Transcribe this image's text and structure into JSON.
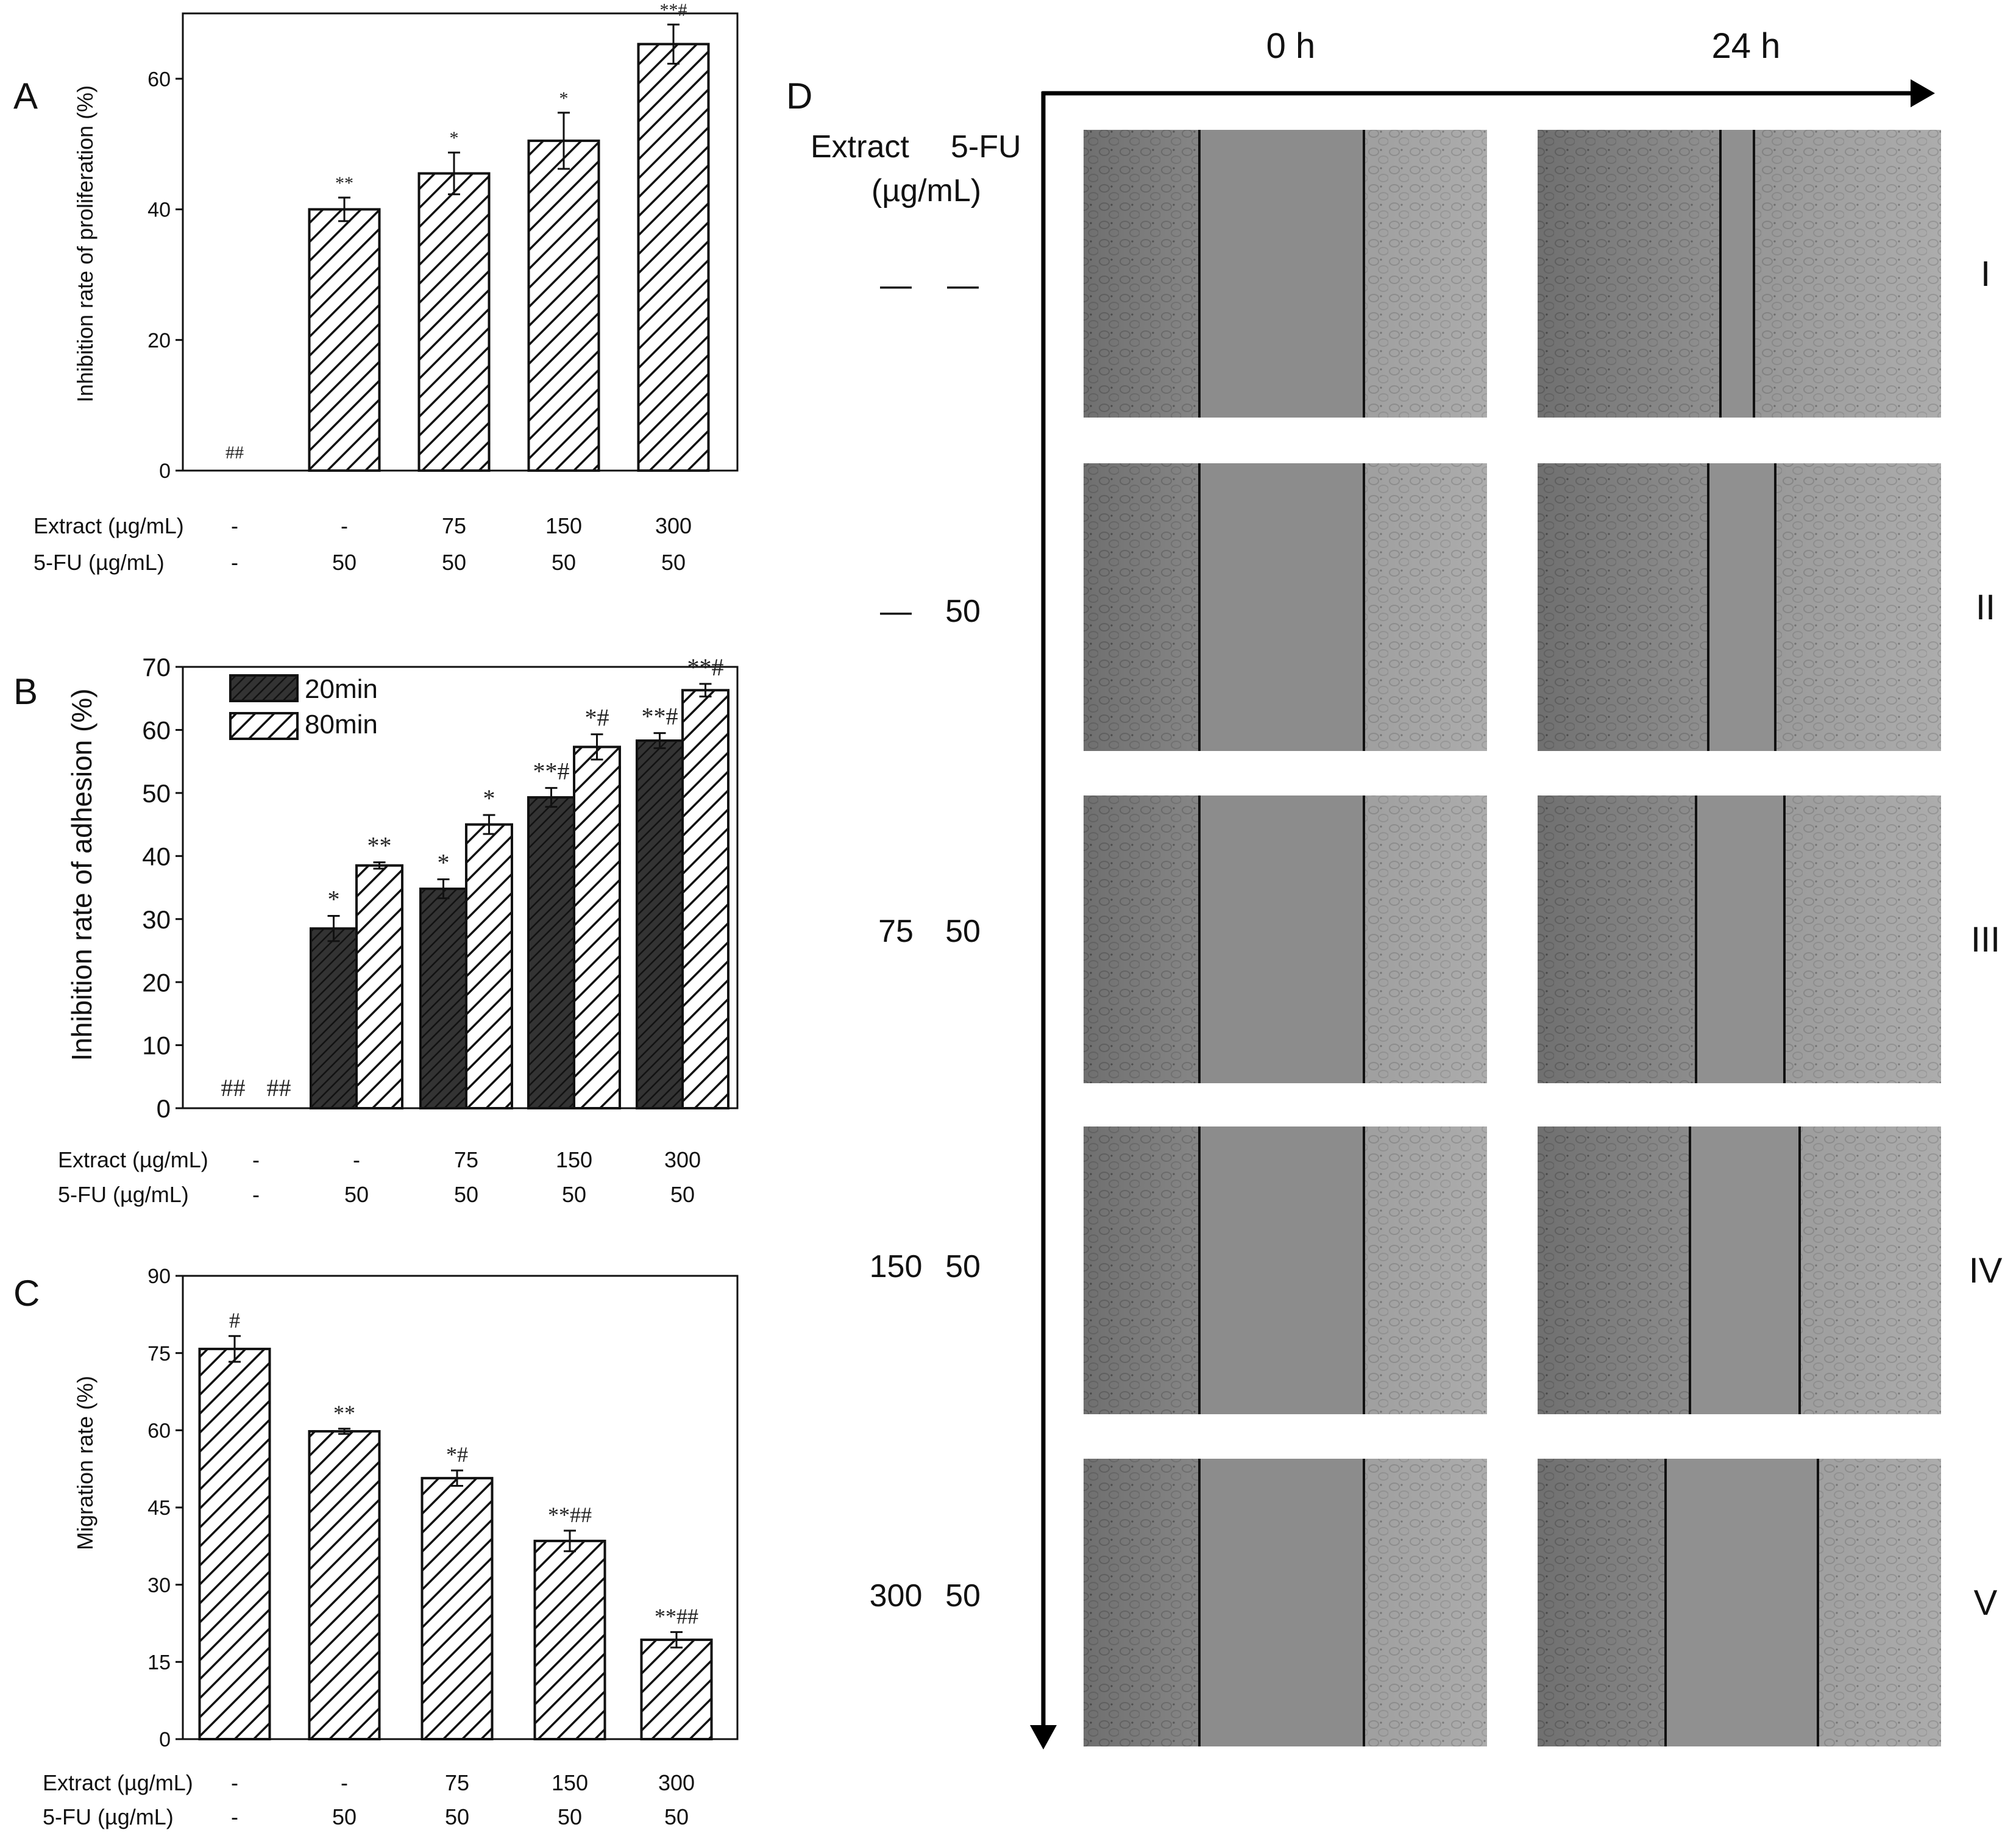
{
  "figure": {
    "panel_labels": [
      "A",
      "B",
      "C",
      "D"
    ]
  },
  "chart_data": [
    {
      "id": "A",
      "type": "bar",
      "ylabel": "Inhibition rate of proliferation (%)",
      "ylim": [
        0,
        70
      ],
      "yticks": [
        0,
        20,
        40,
        60
      ],
      "row_labels": [
        "Extract (µg/mL)",
        "5-FU (µg/mL)"
      ],
      "conditions": [
        {
          "extract": "-",
          "fu": "-"
        },
        {
          "extract": "-",
          "fu": "50"
        },
        {
          "extract": "75",
          "fu": "50"
        },
        {
          "extract": "150",
          "fu": "50"
        },
        {
          "extract": "300",
          "fu": "50"
        }
      ],
      "series": [
        {
          "name": "Inhibition rate of proliferation",
          "style": "hatched",
          "values": [
            0,
            40,
            45.5,
            50.5,
            65.3
          ],
          "errors": [
            0,
            1.8,
            3.2,
            4.3,
            3.0
          ],
          "sig": [
            "##",
            "**",
            "*",
            "*",
            "**#"
          ]
        }
      ]
    },
    {
      "id": "B",
      "type": "bar",
      "ylabel": "Inhibition rate of adhesion (%)",
      "ylim": [
        0,
        70
      ],
      "yticks": [
        0,
        10,
        20,
        30,
        40,
        50,
        60,
        70
      ],
      "legend": [
        "20min",
        "80min"
      ],
      "row_labels": [
        "Extract (µg/mL)",
        "5-FU (µg/mL)"
      ],
      "conditions": [
        {
          "extract": "-",
          "fu": "-"
        },
        {
          "extract": "-",
          "fu": "50"
        },
        {
          "extract": "75",
          "fu": "50"
        },
        {
          "extract": "150",
          "fu": "50"
        },
        {
          "extract": "300",
          "fu": "50"
        }
      ],
      "series": [
        {
          "name": "20min",
          "style": "dark",
          "values": [
            0,
            28.5,
            34.8,
            49.3,
            58.3
          ],
          "errors": [
            0,
            2.0,
            1.5,
            1.5,
            1.2
          ],
          "sig": [
            "##",
            "*",
            "*",
            "**#",
            "**#"
          ]
        },
        {
          "name": "80min",
          "style": "hatched",
          "values": [
            0,
            38.5,
            45.0,
            57.3,
            66.3
          ],
          "errors": [
            0,
            0.5,
            1.5,
            2.0,
            1.0
          ],
          "sig": [
            "##",
            "**",
            "*",
            "*#",
            "**#"
          ]
        }
      ]
    },
    {
      "id": "C",
      "type": "bar",
      "ylabel": "Migration rate (%)",
      "ylim": [
        0,
        90
      ],
      "yticks": [
        0,
        15,
        30,
        45,
        60,
        75,
        90
      ],
      "row_labels": [
        "Extract (µg/mL)",
        "5-FU (µg/mL)"
      ],
      "conditions": [
        {
          "extract": "-",
          "fu": "-"
        },
        {
          "extract": "-",
          "fu": "50"
        },
        {
          "extract": "75",
          "fu": "50"
        },
        {
          "extract": "150",
          "fu": "50"
        },
        {
          "extract": "300",
          "fu": "50"
        }
      ],
      "series": [
        {
          "name": "Migration rate",
          "style": "hatched",
          "values": [
            75.8,
            59.8,
            50.7,
            38.5,
            19.3
          ],
          "errors": [
            2.5,
            0.5,
            1.5,
            2.0,
            1.5
          ],
          "sig": [
            "#",
            "**",
            "*#",
            "**##",
            "**##"
          ]
        }
      ]
    }
  ],
  "panel_d": {
    "label": "D",
    "time_labels": [
      "0 h",
      "24 h"
    ],
    "header_extract": "Extract",
    "header_fu": "5-FU",
    "header_unit": "(µg/mL)",
    "rows": [
      {
        "extract": "—",
        "fu": "—",
        "roman": "I"
      },
      {
        "extract": "—",
        "fu": "50",
        "roman": "II"
      },
      {
        "extract": "75",
        "fu": "50",
        "roman": "III"
      },
      {
        "extract": "150",
        "fu": "50",
        "roman": "IV"
      },
      {
        "extract": "300",
        "fu": "50",
        "roman": "V"
      }
    ]
  }
}
